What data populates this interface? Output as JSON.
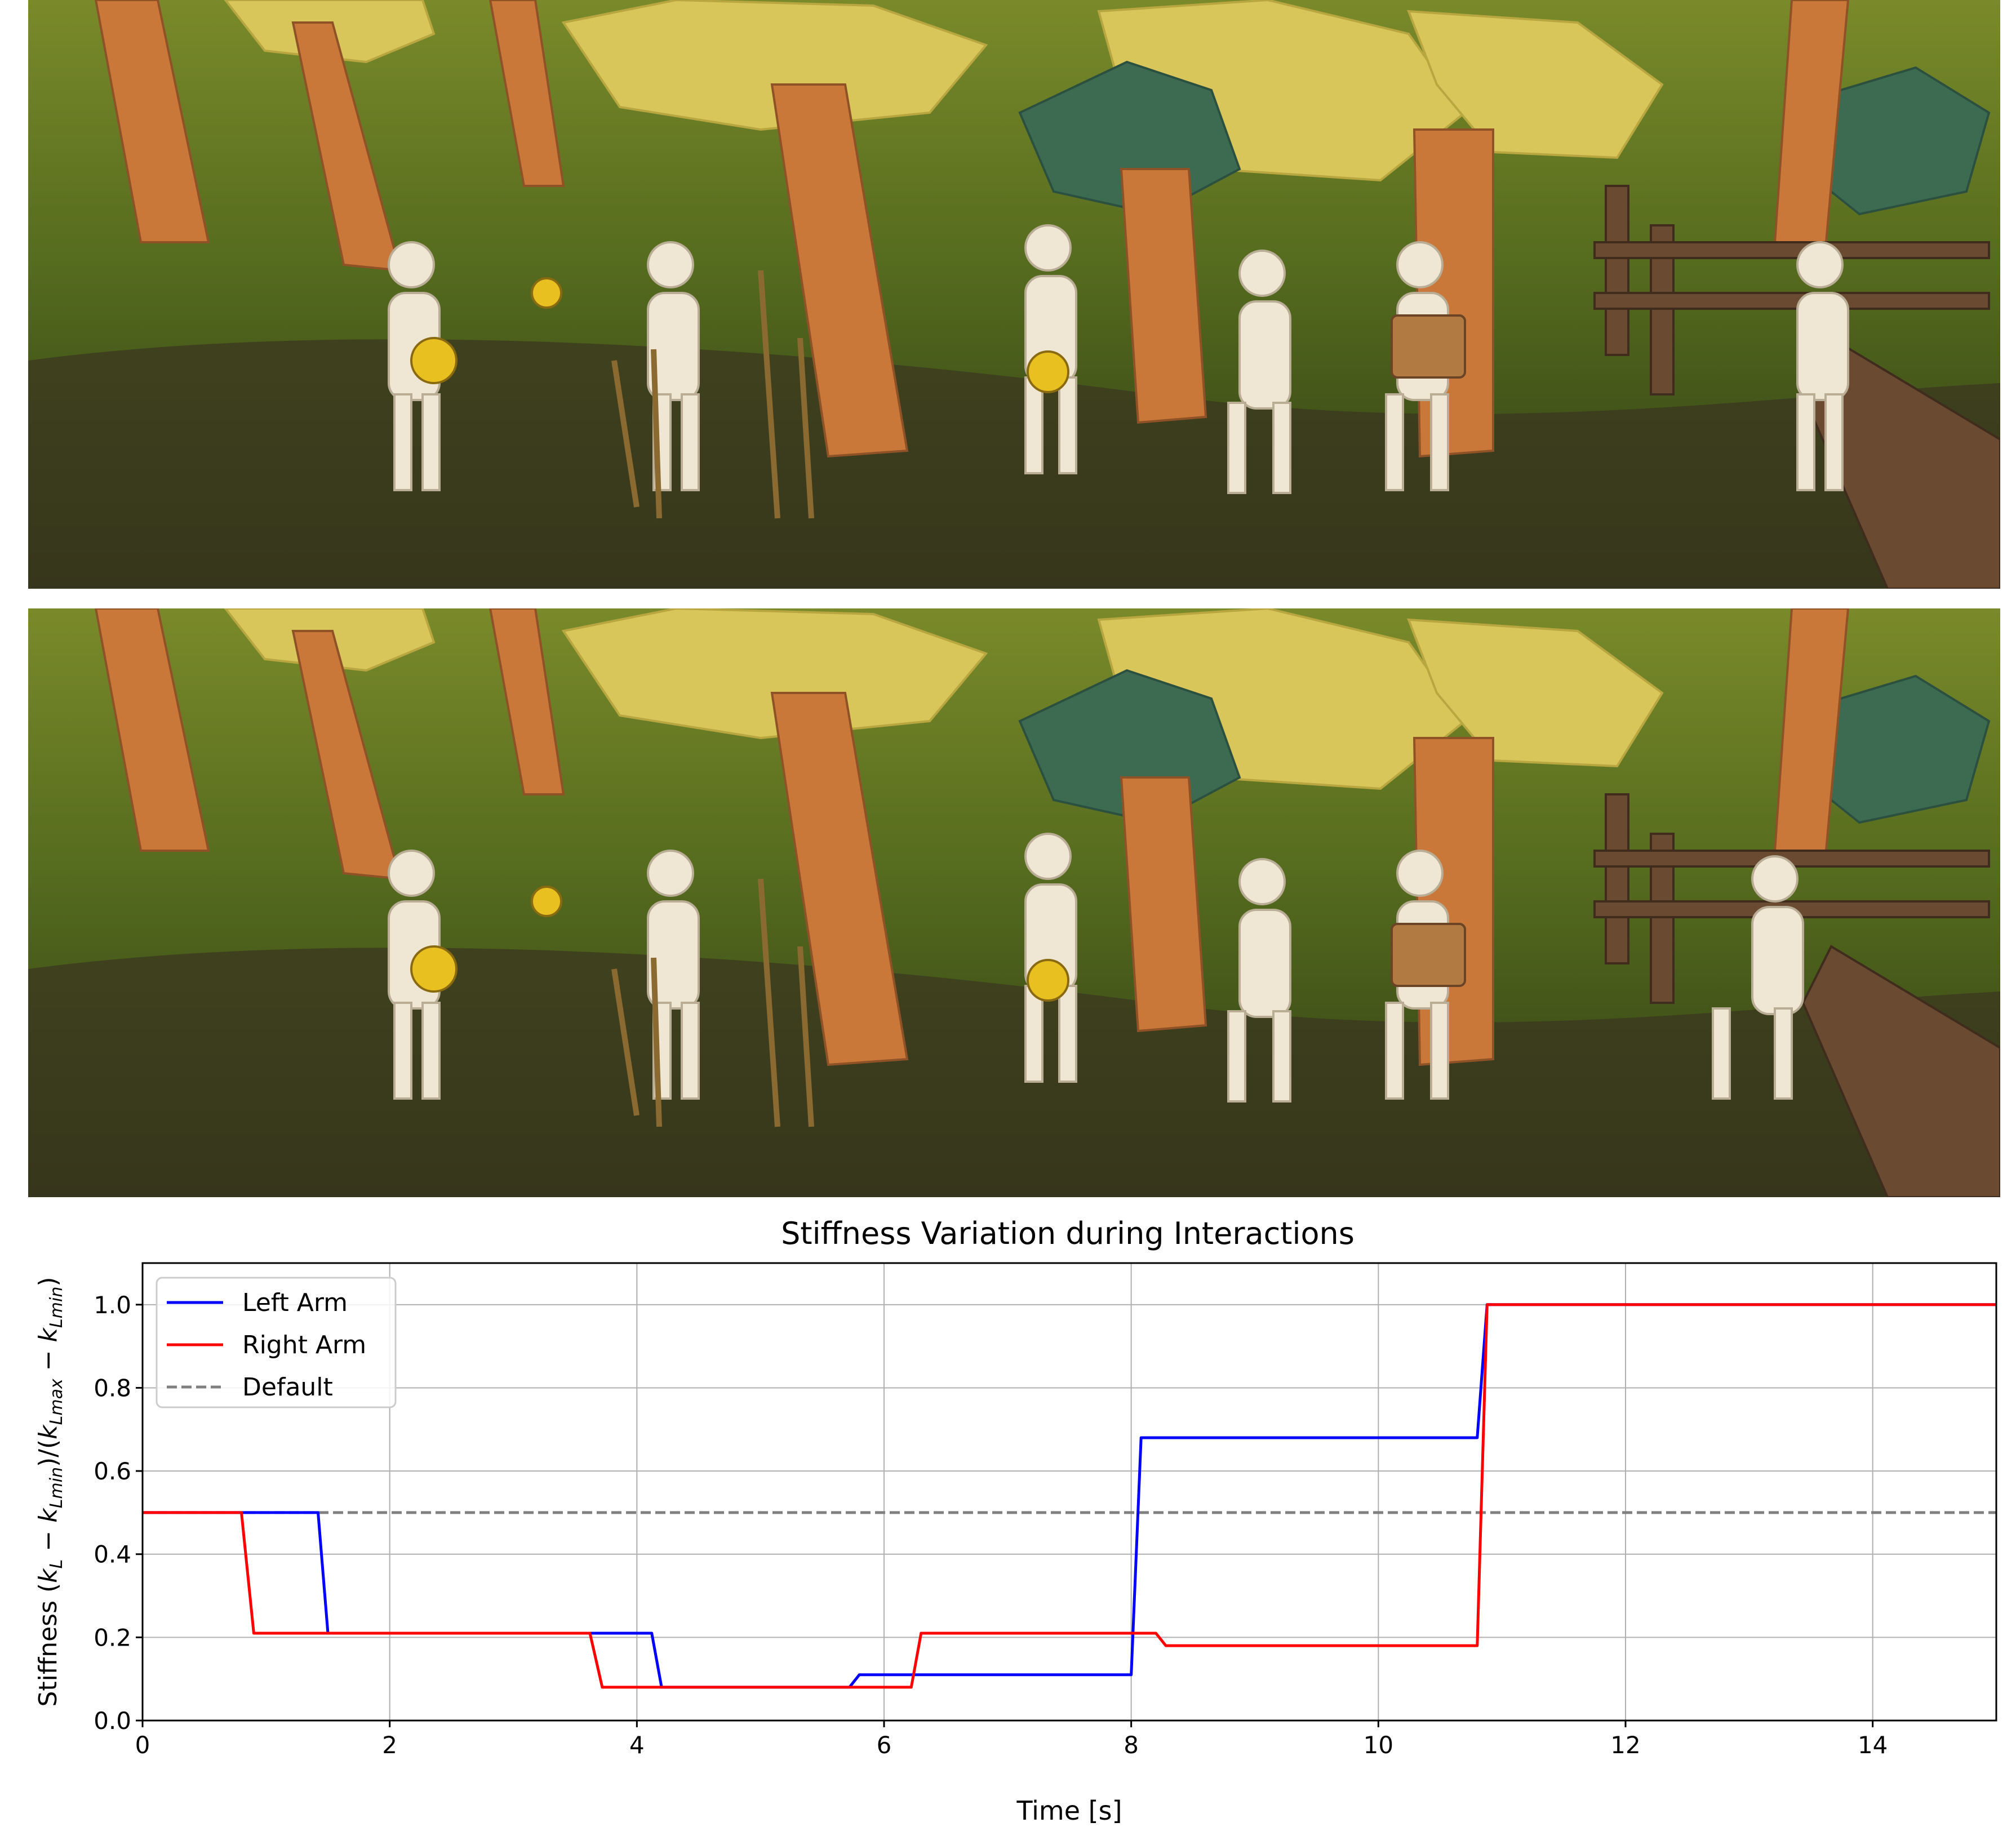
{
  "figure": {
    "scene_top": {
      "description_icon": "low-poly-orchard-scene"
    },
    "scene_bottom": {
      "description_icon": "low-poly-orchard-scene"
    }
  },
  "chart_data": {
    "type": "line",
    "title": "Stiffness Variation during Interactions",
    "xlabel": "Time [s]",
    "ylabel": "Stiffness (kL − kLmin)/(kLmax − kLmin)",
    "xlim": [
      0,
      15
    ],
    "ylim": [
      0,
      1.1
    ],
    "xticks": [
      "0",
      "2",
      "4",
      "6",
      "8",
      "10",
      "12",
      "14"
    ],
    "yticks": [
      "0.0",
      "0.2",
      "0.4",
      "0.6",
      "0.8",
      "1.0"
    ],
    "grid": true,
    "legend_position": "top-left",
    "series": [
      {
        "name": "Left Arm",
        "color": "#0000ff",
        "x": [
          0,
          1.42,
          1.5,
          4.12,
          4.2,
          5.72,
          5.8,
          8.0,
          8.08,
          10.8,
          10.88,
          15
        ],
        "y": [
          0.5,
          0.5,
          0.21,
          0.21,
          0.08,
          0.08,
          0.11,
          0.11,
          0.68,
          0.68,
          1.0,
          1.0
        ]
      },
      {
        "name": "Right Arm",
        "color": "#ff0000",
        "x": [
          0,
          0.8,
          0.9,
          3.62,
          3.72,
          6.22,
          6.3,
          8.2,
          8.28,
          10.8,
          10.88,
          15
        ],
        "y": [
          0.5,
          0.5,
          0.21,
          0.21,
          0.08,
          0.08,
          0.21,
          0.21,
          0.18,
          0.18,
          1.0,
          1.0
        ]
      },
      {
        "name": "Default",
        "color": "#808080",
        "dashed": true,
        "x": [
          0,
          15
        ],
        "y": [
          0.5,
          0.5
        ]
      }
    ]
  }
}
